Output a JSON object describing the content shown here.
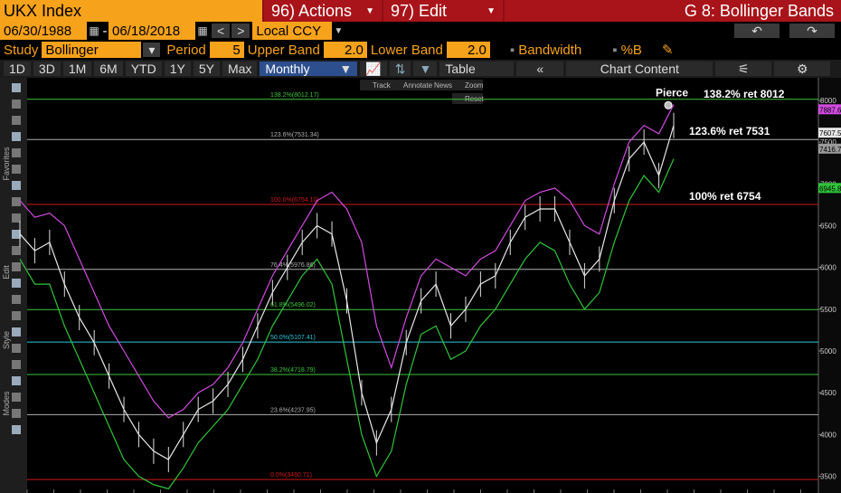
{
  "toolbar": {
    "ticker": "UKX Index",
    "actions": "96) Actions",
    "edit": "97) Edit",
    "function": "G 8: Bollinger Bands",
    "start_date": "06/30/1988",
    "end_date": "06/18/2018",
    "currency": "Local CCY",
    "study_label": "Study",
    "study": "Bollinger",
    "period_label": "Period",
    "period": "5",
    "upper_label": "Upper Band",
    "upper": "2.0",
    "lower_label": "Lower Band",
    "lower": "2.0",
    "bandwidth": "Bandwidth",
    "pctb": "%B",
    "ranges": [
      "1D",
      "3D",
      "1M",
      "6M",
      "YTD",
      "1Y",
      "5Y",
      "Max"
    ],
    "frequency": "Monthly",
    "table": "Table",
    "chart_content": "Chart Content",
    "chart_tools": [
      "Track",
      "Annotate",
      "News",
      "Zoom"
    ],
    "reset": "Reset",
    "side_tabs": [
      "Favorites",
      "Edit",
      "Style",
      "Modes"
    ]
  },
  "chart_data": {
    "type": "line",
    "series": [
      {
        "color": "#e8e8e8",
        "values": [
          6400,
          6200,
          6300,
          5800,
          5400,
          5100,
          4700,
          4300,
          4000,
          3800,
          3700,
          4000,
          4300,
          4400,
          4600,
          4900,
          5300,
          5700,
          6000,
          6300,
          6500,
          6400,
          5600,
          4500,
          3900,
          4300,
          5100,
          5600,
          5800,
          5300,
          5500,
          5800,
          5900,
          6300,
          6600,
          6700,
          6700,
          6300,
          5900,
          6100,
          6800,
          7300,
          7500,
          7100,
          7700
        ]
      },
      {
        "color": "#d24be0",
        "values": [
          6800,
          6600,
          6650,
          6500,
          6100,
          5700,
          5300,
          5000,
          4700,
          4400,
          4200,
          4300,
          4500,
          4600,
          4800,
          5100,
          5500,
          5900,
          6200,
          6500,
          6800,
          6900,
          6700,
          6300,
          5300,
          4800,
          5400,
          5900,
          6100,
          6000,
          5900,
          6100,
          6200,
          6500,
          6800,
          6900,
          6950,
          6800,
          6500,
          6400,
          7000,
          7500,
          7700,
          7600,
          7950
        ]
      },
      {
        "color": "#2fc43a",
        "values": [
          6100,
          5800,
          5800,
          5300,
          4900,
          4500,
          4100,
          3700,
          3500,
          3400,
          3350,
          3600,
          3900,
          4100,
          4300,
          4600,
          4900,
          5300,
          5600,
          5900,
          6100,
          5800,
          4900,
          4000,
          3500,
          3800,
          4600,
          5200,
          5300,
          4900,
          5000,
          5300,
          5500,
          5800,
          6100,
          6300,
          6200,
          5800,
          5500,
          5700,
          6300,
          6800,
          7100,
          6900,
          7300
        ]
      }
    ],
    "ylim": [
      3300,
      8270
    ],
    "yticks": [
      3500,
      4000,
      4500,
      5000,
      5500,
      6000,
      6500,
      7000,
      7500,
      8000
    ],
    "levels": [
      {
        "value": 8012.17,
        "label": "138.2%(8012.17)",
        "color": "#3fc43f"
      },
      {
        "value": 7531.34,
        "label": "123.6%(7531.34)",
        "color": "#b0b0b0"
      },
      {
        "value": 6754.1,
        "label": "100.0%(6754.10)",
        "color": "#d01818"
      },
      {
        "value": 5976.86,
        "label": "76.4%(5976.86)",
        "color": "#b0b0b0"
      },
      {
        "value": 5496.02,
        "label": "61.8%(5496.02)",
        "color": "#3fc43f"
      },
      {
        "value": 5107.41,
        "label": "50.0%(5107.41)",
        "color": "#2cc8d8"
      },
      {
        "value": 4718.79,
        "label": "38.2%(4718.79)",
        "color": "#3fc43f"
      },
      {
        "value": 4237.95,
        "label": "23.6%(4237.95)",
        "color": "#b0b0b0"
      },
      {
        "value": 3460.71,
        "label": "0.0%(3460.71)",
        "color": "#d01818"
      }
    ],
    "last_values": [
      {
        "value": 7887.63,
        "label": "7887.63",
        "color": "#d24be0"
      },
      {
        "value": 7607.57,
        "label": "7607.57",
        "color": "#e8e8e8"
      },
      {
        "value": 7416.72,
        "label": "7416.72",
        "color": "#9a9a9a"
      },
      {
        "value": 6945.8,
        "label": "6945.80",
        "color": "#2fc43a"
      }
    ],
    "annotations": [
      {
        "text": "Pierce",
        "value": 7887.63
      },
      {
        "text": "138.2% ret 8012",
        "value": 8012.17
      },
      {
        "text": "123.6% ret 7531",
        "value": 7531.34
      },
      {
        "text": "100% ret 6754",
        "value": 6754.1
      }
    ]
  }
}
